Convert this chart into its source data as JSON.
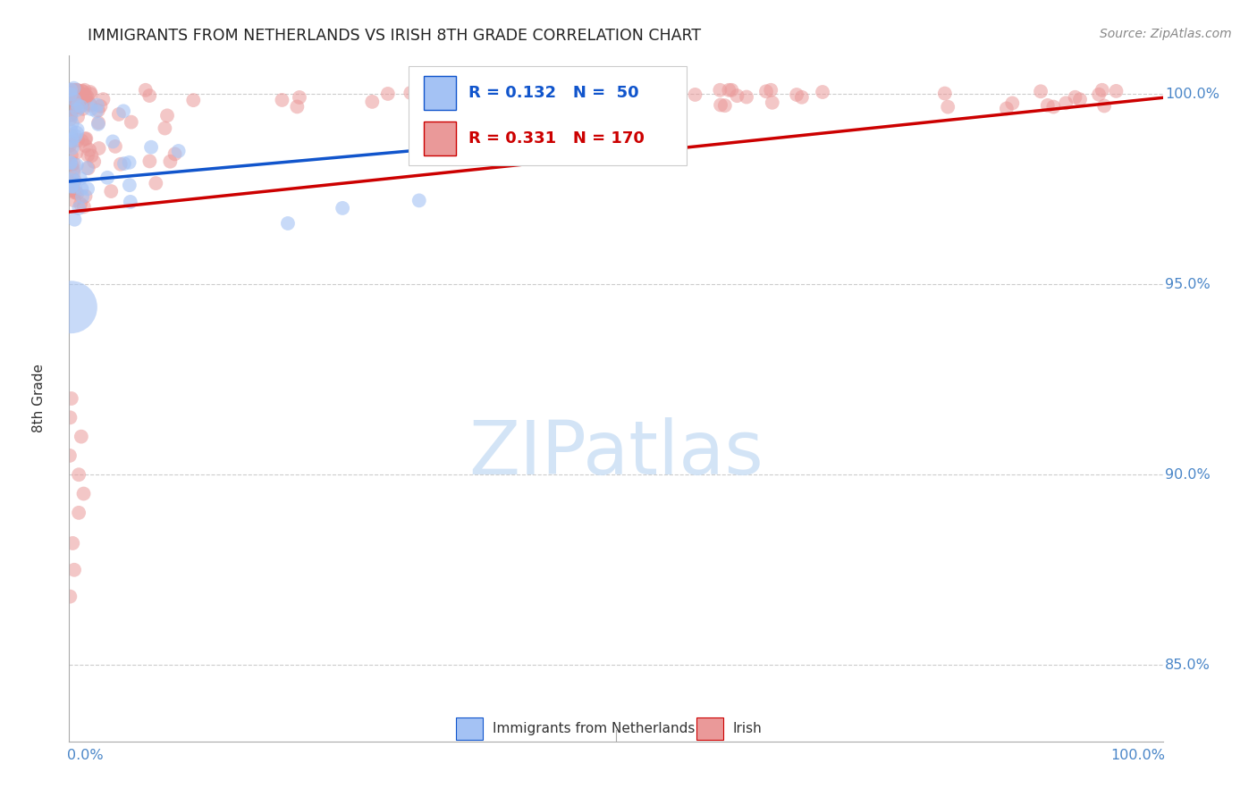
{
  "title": "IMMIGRANTS FROM NETHERLANDS VS IRISH 8TH GRADE CORRELATION CHART",
  "source": "Source: ZipAtlas.com",
  "ylabel": "8th Grade",
  "watermark": "ZIPatlas",
  "legend_blue_r": "R = 0.132",
  "legend_blue_n": "N =  50",
  "legend_pink_r": "R = 0.331",
  "legend_pink_n": "N = 170",
  "blue_color": "#a4c2f4",
  "pink_color": "#ea9999",
  "blue_line_color": "#1155cc",
  "pink_line_color": "#cc0000",
  "axis_color": "#4a86c8",
  "grid_color": "#cccccc",
  "background_color": "#ffffff",
  "xlim": [
    0.0,
    1.0
  ],
  "ylim": [
    0.83,
    1.01
  ],
  "ytick_positions": [
    0.85,
    0.9,
    0.95,
    1.0
  ],
  "ytick_labels": [
    "85.0%",
    "90.0%",
    "95.0%",
    "100.0%"
  ],
  "blue_line_x": [
    0.0,
    0.35
  ],
  "blue_line_y": [
    0.977,
    0.986
  ],
  "pink_line_x": [
    0.0,
    1.0
  ],
  "pink_line_y": [
    0.969,
    0.999
  ]
}
